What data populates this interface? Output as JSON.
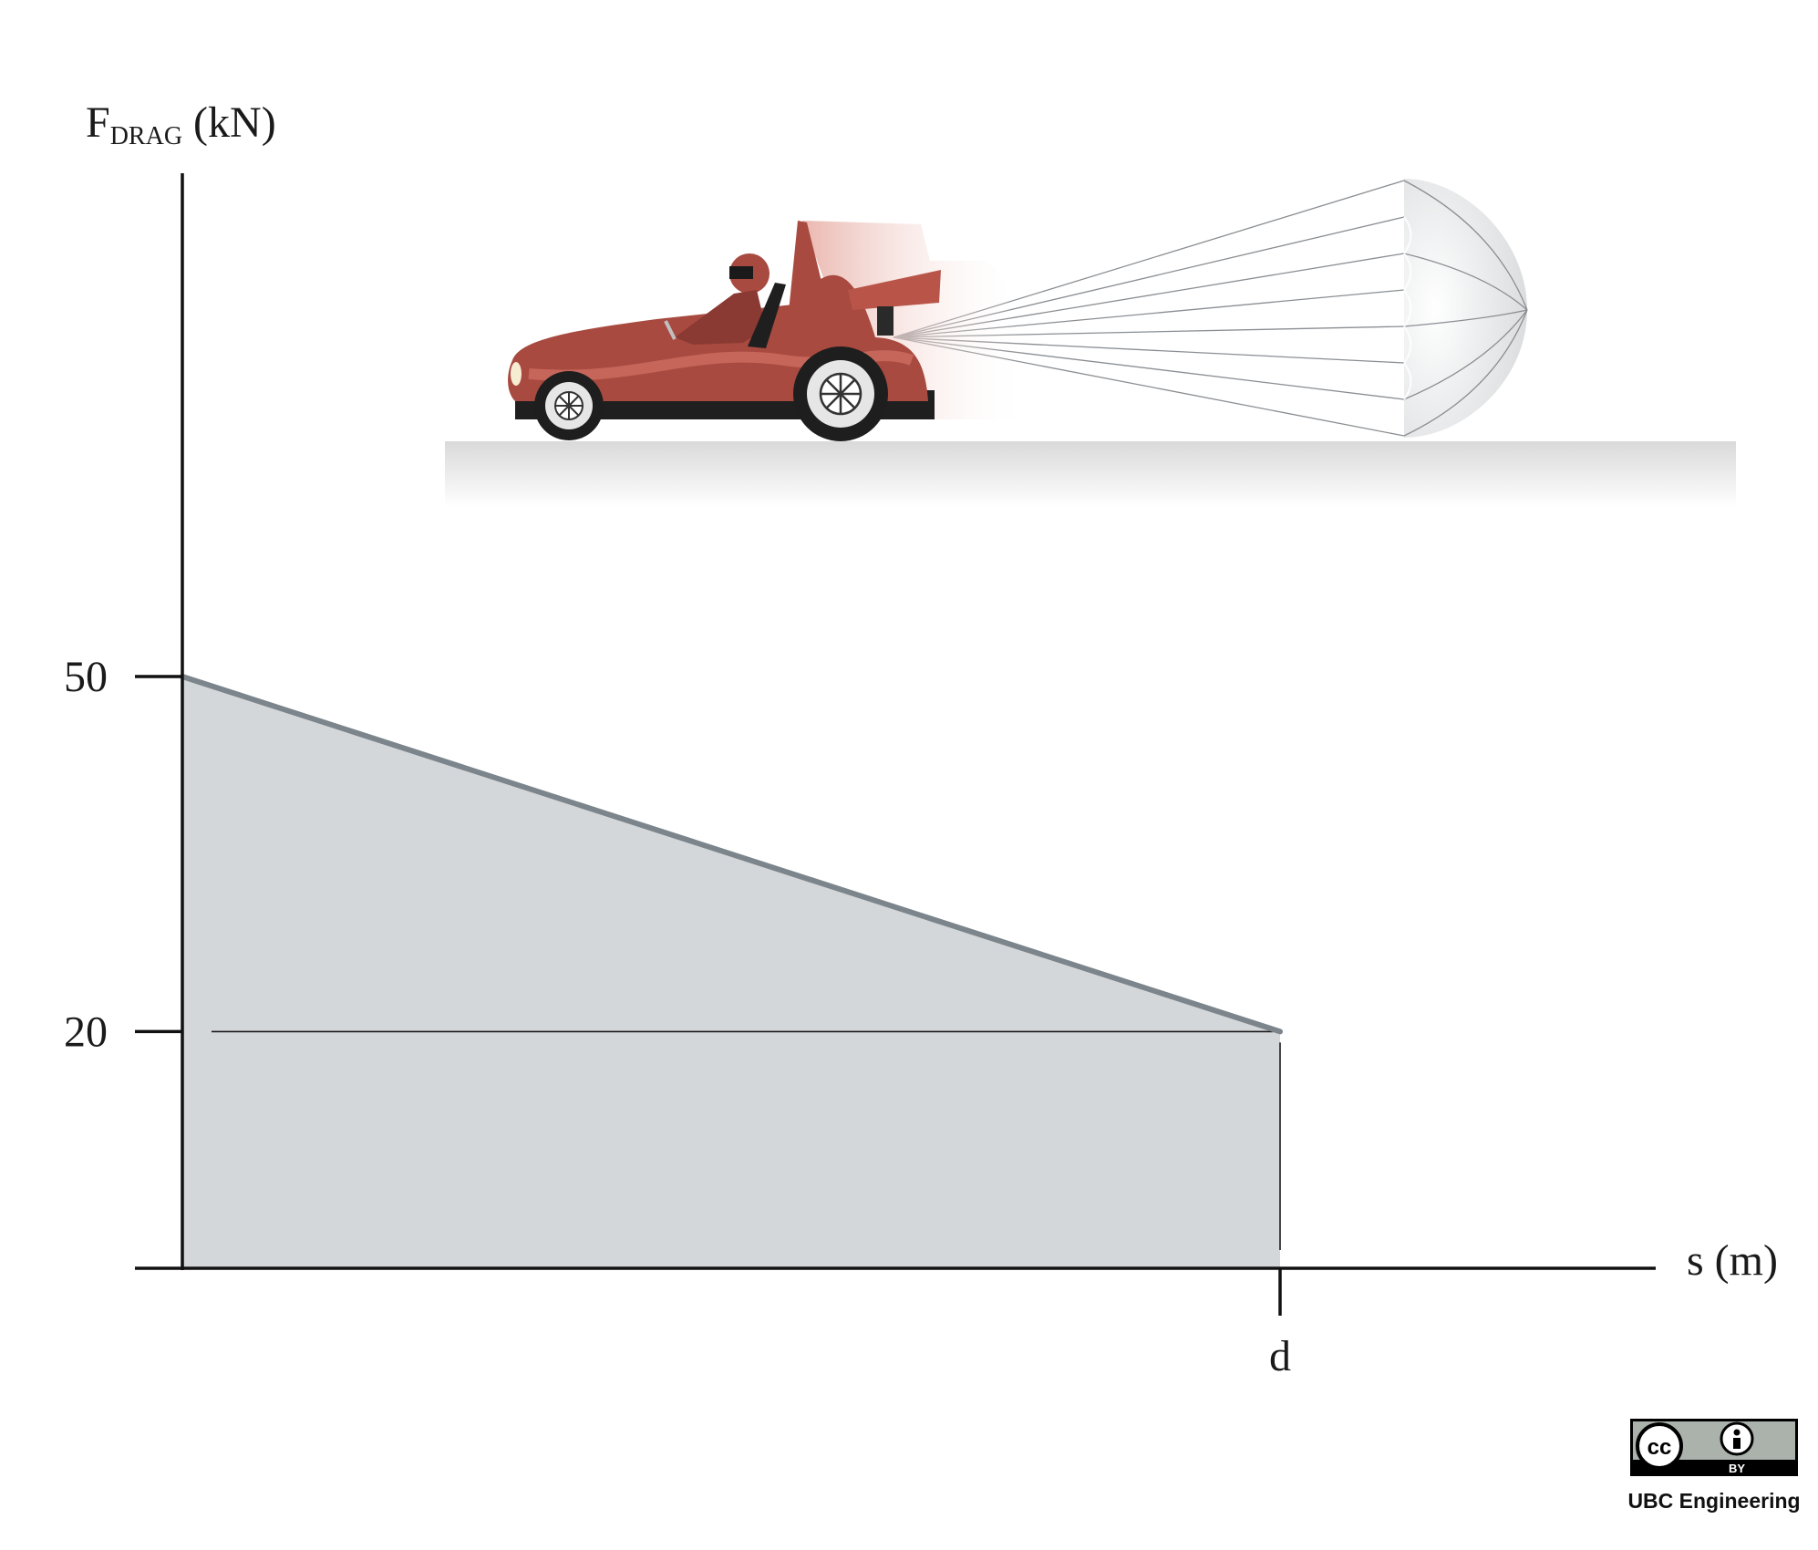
{
  "figure": {
    "y_axis": {
      "label_main": "F",
      "label_sub": "DRAG",
      "label_unit": " (kN)"
    },
    "x_axis": {
      "label": "s (m)"
    },
    "ticks": {
      "y": [
        "50",
        "20"
      ],
      "x": [
        "d"
      ]
    },
    "curve": {
      "description_values": {
        "F_at_0": 50,
        "F_at_d": 20
      },
      "fill_color": "#d4d7da",
      "line_color": "#7b858b"
    },
    "illustration": {
      "car_color": "#a84a40",
      "parachute_color": "#dcdfe1",
      "icons": [
        "race-car-icon",
        "parachute-icon",
        "ground-icon"
      ]
    }
  },
  "license": {
    "cc": "cc",
    "by": "BY",
    "credit": "UBC Engineering"
  }
}
